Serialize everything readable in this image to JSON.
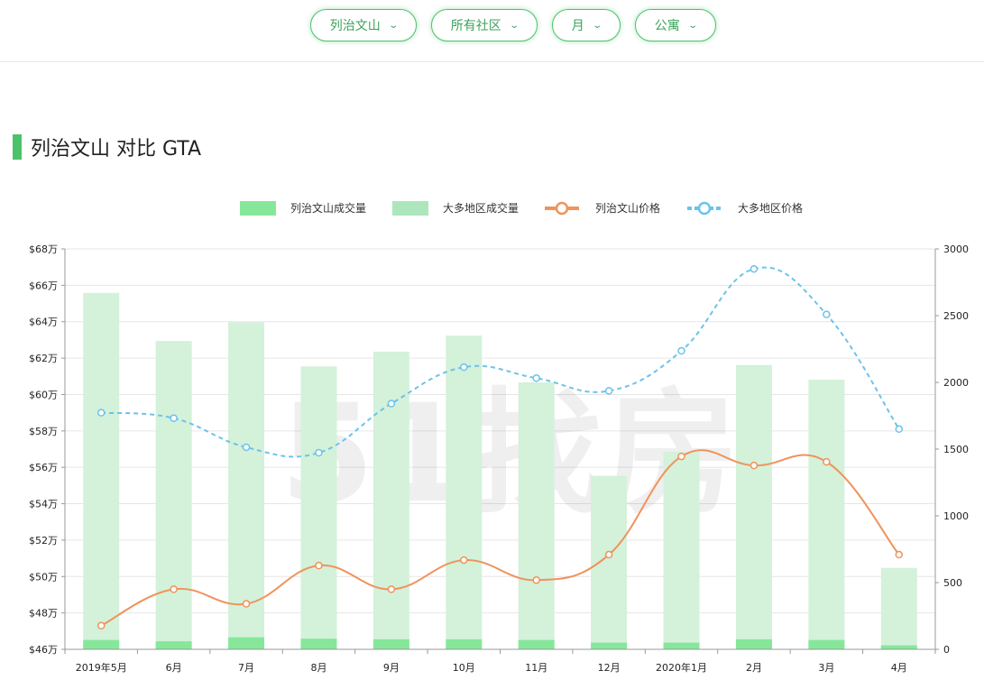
{
  "filters": [
    {
      "label": "列治文山"
    },
    {
      "label": "所有社区"
    },
    {
      "label": "月"
    },
    {
      "label": "公寓"
    }
  ],
  "section": {
    "title": "列治文山 对比 GTA"
  },
  "watermark": "51找房",
  "colors": {
    "accent": "#4cc36a",
    "local_volume": "#86e79b",
    "gta_volume": "#d4f1da",
    "local_price": "#f0935c",
    "gta_price": "#6cc3ea"
  },
  "chart_data": {
    "type": "bar+line",
    "categories": [
      "2019年5月",
      "6月",
      "7月",
      "8月",
      "9月",
      "10月",
      "11月",
      "12月",
      "2020年1月",
      "2月",
      "3月",
      "4月"
    ],
    "legend": [
      "列治文山成交量",
      "大多地区成交量",
      "列治文山价格",
      "大多地区价格"
    ],
    "y_left": {
      "min": 46,
      "max": 68,
      "step": 2,
      "prefix": "$",
      "suffix": "万",
      "ticks": [
        "$46万",
        "$48万",
        "$50万",
        "$52万",
        "$54万",
        "$56万",
        "$58万",
        "$60万",
        "$62万",
        "$64万",
        "$66万",
        "$68万"
      ]
    },
    "y_right": {
      "min": 0,
      "max": 3000,
      "step": 500,
      "ticks": [
        "0",
        "500",
        "1000",
        "1500",
        "2000",
        "2500",
        "3000"
      ]
    },
    "series": [
      {
        "name": "列治文山成交量",
        "type": "bar",
        "axis": "right",
        "values": [
          70,
          60,
          90,
          80,
          75,
          75,
          70,
          50,
          50,
          75,
          70,
          30
        ]
      },
      {
        "name": "大多地区成交量",
        "type": "bar",
        "axis": "right",
        "values": [
          2670,
          2310,
          2450,
          2120,
          2230,
          2350,
          2000,
          1300,
          1480,
          2130,
          2020,
          610
        ]
      },
      {
        "name": "列治文山价格",
        "type": "line",
        "axis": "left",
        "values": [
          47.3,
          49.3,
          48.5,
          50.6,
          49.3,
          50.9,
          49.8,
          51.2,
          56.6,
          56.1,
          56.3,
          51.2
        ]
      },
      {
        "name": "大多地区价格",
        "type": "line",
        "axis": "left",
        "dashed": true,
        "values": [
          59.0,
          58.7,
          57.1,
          56.8,
          59.5,
          61.5,
          60.9,
          60.2,
          62.4,
          66.9,
          64.4,
          58.1
        ]
      }
    ]
  }
}
